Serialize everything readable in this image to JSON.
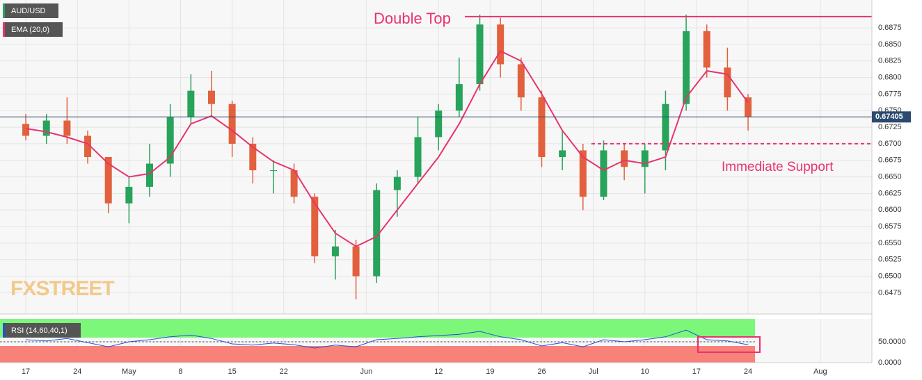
{
  "chart_data": [
    {
      "type": "candlestick",
      "name": "AUD/USD",
      "x": [
        0,
        2,
        4,
        6,
        8,
        10,
        12,
        14,
        16,
        18,
        20,
        22,
        24,
        26,
        28,
        30,
        32,
        34,
        36,
        38,
        40,
        42,
        44,
        46,
        48,
        50,
        52,
        54,
        56,
        58,
        60,
        62,
        64,
        66,
        68,
        70
      ],
      "open": [
        0.673,
        0.6712,
        0.6735,
        0.6712,
        0.668,
        0.661,
        0.6635,
        0.667,
        0.674,
        0.678,
        0.676,
        0.67,
        0.666,
        0.666,
        0.662,
        0.653,
        0.6545,
        0.65,
        0.663,
        0.665,
        0.671,
        0.675,
        0.679,
        0.688,
        0.682,
        0.677,
        0.668,
        0.669,
        0.662,
        0.669,
        0.6665,
        0.669,
        0.676,
        0.687,
        0.6815,
        0.677
      ],
      "high": [
        0.6745,
        0.6745,
        0.677,
        0.672,
        0.668,
        0.665,
        0.67,
        0.676,
        0.6805,
        0.681,
        0.6765,
        0.671,
        0.6675,
        0.667,
        0.6625,
        0.657,
        0.6555,
        0.664,
        0.666,
        0.674,
        0.676,
        0.683,
        0.6895,
        0.689,
        0.683,
        0.678,
        0.672,
        0.67,
        0.6705,
        0.67,
        0.67,
        0.678,
        0.6895,
        0.688,
        0.6845,
        0.6775
      ],
      "low": [
        0.6705,
        0.67,
        0.67,
        0.667,
        0.6595,
        0.658,
        0.662,
        0.665,
        0.673,
        0.674,
        0.668,
        0.664,
        0.6625,
        0.661,
        0.652,
        0.6495,
        0.6465,
        0.649,
        0.659,
        0.664,
        0.669,
        0.674,
        0.678,
        0.68,
        0.675,
        0.6665,
        0.666,
        0.66,
        0.6615,
        0.6645,
        0.6625,
        0.666,
        0.675,
        0.68,
        0.675,
        0.672
      ],
      "close": [
        0.6712,
        0.6735,
        0.6712,
        0.668,
        0.661,
        0.6635,
        0.667,
        0.674,
        0.678,
        0.676,
        0.67,
        0.666,
        0.666,
        0.662,
        0.653,
        0.6545,
        0.65,
        0.663,
        0.665,
        0.671,
        0.675,
        0.679,
        0.688,
        0.682,
        0.677,
        0.668,
        0.669,
        0.662,
        0.669,
        0.6665,
        0.669,
        0.676,
        0.687,
        0.6815,
        0.677,
        0.67405
      ],
      "up_color": "#27a35a",
      "down_color": "#e2603d",
      "ema": {
        "name": "EMA (20,0)",
        "color": "#e8336e",
        "values": [
          0.6723,
          0.6718,
          0.671,
          0.67,
          0.667,
          0.665,
          0.6655,
          0.668,
          0.673,
          0.6742,
          0.672,
          0.6695,
          0.6673,
          0.666,
          0.661,
          0.6565,
          0.6545,
          0.656,
          0.66,
          0.664,
          0.668,
          0.673,
          0.679,
          0.684,
          0.6825,
          0.6775,
          0.672,
          0.668,
          0.666,
          0.6675,
          0.667,
          0.668,
          0.677,
          0.681,
          0.6805,
          0.6762
        ]
      },
      "last_price": 0.67405,
      "annotations": [
        {
          "text": "Double Top",
          "value": 0.6892
        },
        {
          "text": "Immediate Support",
          "value": 0.67
        }
      ],
      "watermark": "FXSTREET",
      "xlim": [
        -2.5,
        82
      ],
      "xticks": [
        {
          "value": 0,
          "label": "17"
        },
        {
          "value": 5,
          "label": "24"
        },
        {
          "value": 10,
          "label": "May"
        },
        {
          "value": 15,
          "label": "8"
        },
        {
          "value": 20,
          "label": "15"
        },
        {
          "value": 25,
          "label": "22"
        },
        {
          "value": 33,
          "label": "Jun"
        },
        {
          "value": 40,
          "label": "12"
        },
        {
          "value": 45,
          "label": "19"
        },
        {
          "value": 50,
          "label": "26"
        },
        {
          "value": 55,
          "label": "Jul"
        },
        {
          "value": 60,
          "label": "10"
        },
        {
          "value": 65,
          "label": "17"
        },
        {
          "value": 70,
          "label": "24"
        },
        {
          "value": 77,
          "label": "Aug"
        }
      ],
      "ylim": [
        0.6443,
        0.6917
      ],
      "yticks": [
        0.6475,
        {
          "value": 0.65,
          "label": "0.6500"
        },
        0.6525,
        {
          "value": 0.655,
          "label": "0.6550"
        },
        0.6575,
        {
          "value": 0.66,
          "label": "0.6600"
        },
        0.6625,
        {
          "value": 0.665,
          "label": "0.6650"
        },
        0.6675,
        {
          "value": 0.67,
          "label": "0.6700"
        },
        0.6725,
        {
          "value": 0.675,
          "label": "0.6750"
        },
        0.6775,
        {
          "value": 0.68,
          "label": "0.6800"
        },
        0.6825,
        {
          "value": 0.685,
          "label": "0.6850"
        },
        0.6875
      ],
      "grid": true
    },
    {
      "type": "line",
      "name": "RSI (14,60,40,1)",
      "color": "#2450d8",
      "values": [
        55,
        52,
        58,
        48,
        38,
        50,
        55,
        62,
        66,
        58,
        45,
        42,
        47,
        43,
        35,
        42,
        38,
        55,
        58,
        62,
        65,
        68,
        75,
        62,
        55,
        40,
        48,
        38,
        55,
        50,
        55,
        62,
        78,
        55,
        52,
        43
      ],
      "upper": 60,
      "lower": 40,
      "upper_color": "#7cf77a",
      "lower_color": "#f8817a",
      "ylim": [
        0,
        105
      ],
      "yticks": [
        {
          "value": 50,
          "label": "50.0000"
        },
        {
          "value": 0,
          "label": "0.0000"
        }
      ]
    }
  ]
}
